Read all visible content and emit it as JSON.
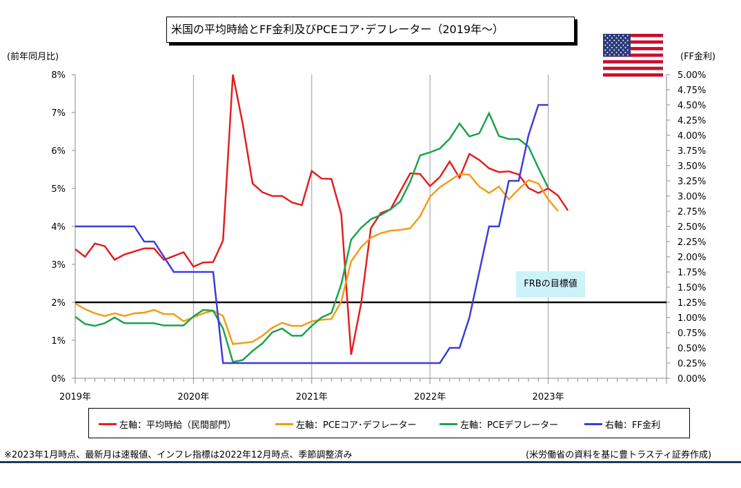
{
  "title": "米国の平均時給とFF金利及びPCEコア･デフレーター（2019年～）",
  "left_axis_label": "(前年同月比)",
  "right_axis_label": "(FF金利)",
  "target_label": "FRBの目標値",
  "footnote": "※2023年1月時点、最新月は速報値、インフレ指標は2022年12月時点、季節調整済み",
  "source": "(米労働省の資料を基に豊トラスティ証券作成)",
  "flag_icon": "us-flag-icon",
  "legend": [
    {
      "label": "左軸：平均時給（民間部門）",
      "color": "#e31e1e"
    },
    {
      "label": "左軸：PCEコア･デフレーター",
      "color": "#f39c12"
    },
    {
      "label": "左軸：PCEデフレーター",
      "color": "#1aa34a"
    },
    {
      "label": "右軸：FF金利",
      "color": "#3b3bdc"
    }
  ],
  "chart_data": {
    "type": "line",
    "x_unit": "month index from January 2019",
    "x_ticks": [
      "2019年",
      "2020年",
      "2021年",
      "2022年",
      "2023年"
    ],
    "y_left_ticks": [
      "0%",
      "1%",
      "2%",
      "3%",
      "4%",
      "5%",
      "6%",
      "7%",
      "8%"
    ],
    "y_right_ticks": [
      "0.00%",
      "0.25%",
      "0.50%",
      "0.75%",
      "1.00%",
      "1.25%",
      "1.50%",
      "1.75%",
      "2.00%",
      "2.25%",
      "2.50%",
      "2.75%",
      "3.00%",
      "3.25%",
      "3.50%",
      "3.75%",
      "4.00%",
      "4.25%",
      "4.50%",
      "4.75%",
      "5.00%"
    ],
    "ylim_left": [
      0,
      8
    ],
    "ylim_right": [
      0,
      5
    ],
    "xlim": [
      0,
      60
    ],
    "grid": "vertical gridlines at year boundaries",
    "target_line": {
      "axis": "left",
      "value": 2.0
    },
    "series": [
      {
        "name": "左軸：平均時給（民間部門）",
        "axis": "left",
        "color": "#e31e1e",
        "values": [
          3.4,
          3.2,
          3.55,
          3.48,
          3.12,
          3.26,
          3.34,
          3.42,
          3.42,
          3.12,
          3.22,
          3.32,
          2.94,
          3.05,
          3.06,
          3.63,
          8.0,
          6.7,
          5.13,
          4.9,
          4.8,
          4.8,
          4.63,
          4.56,
          5.46,
          5.26,
          5.25,
          4.32,
          0.62,
          1.95,
          3.95,
          4.35,
          4.45,
          4.93,
          5.4,
          5.38,
          5.06,
          5.3,
          5.71,
          5.28,
          5.91,
          5.75,
          5.53,
          5.43,
          5.45,
          5.37,
          5.01,
          4.88,
          5.0,
          4.81,
          4.42
        ]
      },
      {
        "name": "左軸：PCEコア･デフレーター",
        "axis": "left",
        "color": "#f39c12",
        "values": [
          1.97,
          1.82,
          1.71,
          1.64,
          1.71,
          1.64,
          1.71,
          1.73,
          1.8,
          1.69,
          1.69,
          1.5,
          1.61,
          1.71,
          1.78,
          1.64,
          0.9,
          0.93,
          0.96,
          1.12,
          1.33,
          1.46,
          1.38,
          1.38,
          1.5,
          1.54,
          1.56,
          2.02,
          3.08,
          3.45,
          3.7,
          3.82,
          3.89,
          3.91,
          3.95,
          4.27,
          4.78,
          5.03,
          5.2,
          5.38,
          5.36,
          5.05,
          4.88,
          5.05,
          4.71,
          4.98,
          5.22,
          5.13,
          4.71,
          4.4
        ]
      },
      {
        "name": "左軸：PCEデフレーター",
        "axis": "left",
        "color": "#1aa34a",
        "values": [
          1.62,
          1.43,
          1.38,
          1.45,
          1.6,
          1.45,
          1.45,
          1.45,
          1.45,
          1.39,
          1.39,
          1.39,
          1.63,
          1.8,
          1.78,
          1.31,
          0.43,
          0.48,
          0.72,
          0.92,
          1.21,
          1.31,
          1.12,
          1.12,
          1.38,
          1.6,
          1.72,
          2.48,
          3.65,
          3.96,
          4.19,
          4.3,
          4.45,
          4.66,
          5.18,
          5.87,
          5.95,
          6.05,
          6.31,
          6.71,
          6.37,
          6.45,
          6.98,
          6.38,
          6.3,
          6.3,
          6.1,
          5.54,
          5.02
        ]
      },
      {
        "name": "右軸：FF金利",
        "axis": "right",
        "color": "#3b3bdc",
        "values": [
          2.5,
          2.5,
          2.5,
          2.5,
          2.5,
          2.5,
          2.5,
          2.25,
          2.25,
          2.0,
          1.75,
          1.75,
          1.75,
          1.75,
          1.75,
          0.25,
          0.25,
          0.25,
          0.25,
          0.25,
          0.25,
          0.25,
          0.25,
          0.25,
          0.25,
          0.25,
          0.25,
          0.25,
          0.25,
          0.25,
          0.25,
          0.25,
          0.25,
          0.25,
          0.25,
          0.25,
          0.25,
          0.25,
          0.5,
          0.5,
          1.0,
          1.75,
          2.5,
          2.5,
          3.25,
          3.25,
          4.0,
          4.5,
          4.5
        ]
      }
    ]
  }
}
